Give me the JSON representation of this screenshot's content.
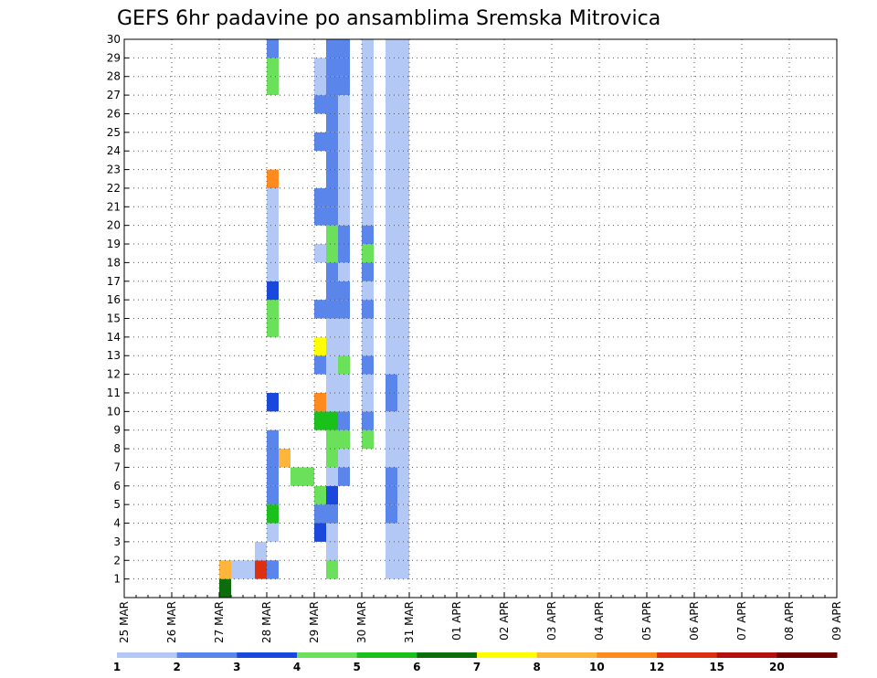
{
  "chart_data": {
    "type": "heatmap",
    "title": "GEFS 6hr padavine po ansamblima Sremska Mitrovica",
    "x_axis": {
      "ticks": [
        "25 MAR",
        "26 MAR",
        "27 MAR",
        "28 MAR",
        "29 MAR",
        "30 MAR",
        "31 MAR",
        "01 APR",
        "02 APR",
        "03 APR",
        "04 APR",
        "05 APR",
        "06 APR",
        "07 APR",
        "08 APR",
        "09 APR"
      ],
      "step": "6 hr"
    },
    "y_axis": {
      "ticks": [
        "1",
        "2",
        "3",
        "4",
        "5",
        "6",
        "7",
        "8",
        "9",
        "10",
        "11",
        "12",
        "13",
        "14",
        "15",
        "16",
        "17",
        "18",
        "19",
        "20",
        "21",
        "22",
        "23",
        "24",
        "25",
        "26",
        "27",
        "28",
        "29",
        "30"
      ],
      "range": [
        0,
        30
      ]
    },
    "grid": true,
    "legend": {
      "placement": "bottom",
      "labels": [
        "1",
        "2",
        "3",
        "4",
        "5",
        "6",
        "7",
        "8",
        "10",
        "12",
        "15",
        "20"
      ],
      "colors": [
        "#b3c8f5",
        "#5a86ec",
        "#1a48dc",
        "#6be05a",
        "#1ac11a",
        "#0b6e0b",
        "#ffff00",
        "#ffb43c",
        "#ff8a1e",
        "#dd3010",
        "#b41010",
        "#6e0000"
      ]
    },
    "cells": [
      [
        8,
        0,
        5
      ],
      [
        8,
        1,
        7
      ],
      [
        12,
        1,
        1
      ],
      [
        17,
        2,
        1
      ],
      [
        17,
        3,
        2
      ],
      [
        14,
        6,
        3
      ],
      [
        15,
        6,
        3
      ],
      [
        12,
        7,
        7
      ],
      [
        13,
        7,
        7
      ],
      [
        9,
        1,
        0
      ],
      [
        10,
        1,
        0
      ],
      [
        11,
        1,
        9
      ],
      [
        11,
        2,
        0
      ],
      [
        12,
        3,
        0
      ],
      [
        12,
        4,
        4
      ],
      [
        12,
        5,
        1
      ],
      [
        12,
        6,
        1
      ],
      [
        12,
        7,
        1
      ],
      [
        12,
        8,
        1
      ],
      [
        12,
        10,
        2
      ],
      [
        12,
        14,
        3
      ],
      [
        12,
        15,
        3
      ],
      [
        12,
        16,
        2
      ],
      [
        12,
        17,
        0
      ],
      [
        12,
        18,
        0
      ],
      [
        12,
        19,
        0
      ],
      [
        12,
        20,
        0
      ],
      [
        12,
        21,
        0
      ],
      [
        12,
        22,
        8
      ],
      [
        12,
        27,
        3
      ],
      [
        12,
        28,
        3
      ],
      [
        12,
        29,
        1
      ],
      [
        16,
        3,
        2
      ],
      [
        16,
        4,
        1
      ],
      [
        16,
        5,
        3
      ],
      [
        16,
        9,
        4
      ],
      [
        16,
        10,
        8
      ],
      [
        16,
        12,
        1
      ],
      [
        16,
        13,
        6
      ],
      [
        16,
        15,
        1
      ],
      [
        16,
        18,
        0
      ],
      [
        16,
        20,
        1
      ],
      [
        16,
        21,
        1
      ],
      [
        16,
        24,
        1
      ],
      [
        16,
        26,
        1
      ],
      [
        16,
        27,
        0
      ],
      [
        16,
        28,
        0
      ],
      [
        17,
        1,
        3
      ],
      [
        17,
        2,
        0
      ],
      [
        17,
        3,
        0
      ],
      [
        17,
        4,
        1
      ],
      [
        17,
        5,
        2
      ],
      [
        17,
        6,
        0
      ],
      [
        17,
        7,
        3
      ],
      [
        17,
        8,
        3
      ],
      [
        17,
        9,
        4
      ],
      [
        17,
        10,
        0
      ],
      [
        17,
        11,
        0
      ],
      [
        17,
        12,
        0
      ],
      [
        17,
        13,
        0
      ],
      [
        17,
        14,
        0
      ],
      [
        17,
        15,
        1
      ],
      [
        17,
        16,
        1
      ],
      [
        17,
        17,
        1
      ],
      [
        17,
        18,
        3
      ],
      [
        17,
        19,
        3
      ],
      [
        17,
        20,
        1
      ],
      [
        17,
        21,
        1
      ],
      [
        17,
        22,
        1
      ],
      [
        17,
        23,
        1
      ],
      [
        17,
        24,
        1
      ],
      [
        17,
        25,
        1
      ],
      [
        17,
        26,
        1
      ],
      [
        17,
        27,
        1
      ],
      [
        17,
        28,
        1
      ],
      [
        17,
        29,
        1
      ],
      [
        18,
        6,
        1
      ],
      [
        18,
        7,
        0
      ],
      [
        18,
        8,
        3
      ],
      [
        18,
        9,
        1
      ],
      [
        18,
        10,
        0
      ],
      [
        18,
        11,
        0
      ],
      [
        18,
        12,
        3
      ],
      [
        18,
        13,
        0
      ],
      [
        18,
        14,
        0
      ],
      [
        18,
        15,
        1
      ],
      [
        18,
        16,
        1
      ],
      [
        18,
        17,
        0
      ],
      [
        18,
        18,
        1
      ],
      [
        18,
        19,
        1
      ],
      [
        18,
        20,
        0
      ],
      [
        18,
        21,
        0
      ],
      [
        18,
        22,
        0
      ],
      [
        18,
        23,
        0
      ],
      [
        18,
        24,
        0
      ],
      [
        18,
        25,
        0
      ],
      [
        18,
        26,
        0
      ],
      [
        18,
        27,
        1
      ],
      [
        18,
        28,
        1
      ],
      [
        18,
        29,
        1
      ],
      [
        20,
        8,
        3
      ],
      [
        20,
        9,
        1
      ],
      [
        20,
        10,
        0
      ],
      [
        20,
        11,
        0
      ],
      [
        20,
        12,
        1
      ],
      [
        20,
        13,
        0
      ],
      [
        20,
        14,
        0
      ],
      [
        20,
        15,
        1
      ],
      [
        20,
        16,
        0
      ],
      [
        20,
        17,
        1
      ],
      [
        20,
        18,
        3
      ],
      [
        20,
        19,
        1
      ],
      [
        20,
        20,
        0
      ],
      [
        20,
        21,
        0
      ],
      [
        20,
        22,
        0
      ],
      [
        20,
        23,
        0
      ],
      [
        20,
        24,
        0
      ],
      [
        20,
        25,
        0
      ],
      [
        20,
        26,
        0
      ],
      [
        20,
        27,
        0
      ],
      [
        20,
        28,
        0
      ],
      [
        20,
        29,
        0
      ],
      [
        22,
        1,
        0
      ],
      [
        22,
        2,
        0
      ],
      [
        22,
        3,
        0
      ],
      [
        22,
        4,
        1
      ],
      [
        22,
        5,
        1
      ],
      [
        22,
        6,
        1
      ],
      [
        22,
        7,
        0
      ],
      [
        22,
        8,
        0
      ],
      [
        22,
        9,
        0
      ],
      [
        22,
        10,
        1
      ],
      [
        22,
        11,
        1
      ],
      [
        22,
        12,
        0
      ],
      [
        22,
        13,
        0
      ],
      [
        22,
        14,
        0
      ],
      [
        22,
        15,
        0
      ],
      [
        22,
        16,
        0
      ],
      [
        22,
        17,
        0
      ],
      [
        22,
        18,
        0
      ],
      [
        22,
        19,
        0
      ],
      [
        22,
        20,
        0
      ],
      [
        22,
        21,
        0
      ],
      [
        22,
        22,
        0
      ],
      [
        22,
        23,
        0
      ],
      [
        22,
        24,
        0
      ],
      [
        22,
        25,
        0
      ],
      [
        22,
        26,
        0
      ],
      [
        22,
        27,
        0
      ],
      [
        22,
        28,
        0
      ],
      [
        22,
        29,
        0
      ],
      [
        23,
        1,
        0
      ],
      [
        23,
        2,
        0
      ],
      [
        23,
        3,
        0
      ],
      [
        23,
        4,
        0
      ],
      [
        23,
        5,
        0
      ],
      [
        23,
        6,
        0
      ],
      [
        23,
        7,
        0
      ],
      [
        23,
        8,
        0
      ],
      [
        23,
        9,
        0
      ],
      [
        23,
        10,
        0
      ],
      [
        23,
        11,
        0
      ],
      [
        23,
        12,
        0
      ],
      [
        23,
        13,
        0
      ],
      [
        23,
        14,
        0
      ],
      [
        23,
        15,
        0
      ],
      [
        23,
        16,
        0
      ],
      [
        23,
        17,
        0
      ],
      [
        23,
        18,
        0
      ],
      [
        23,
        19,
        0
      ],
      [
        23,
        20,
        0
      ],
      [
        23,
        21,
        0
      ],
      [
        23,
        22,
        0
      ],
      [
        23,
        23,
        0
      ],
      [
        23,
        24,
        0
      ],
      [
        23,
        25,
        0
      ],
      [
        23,
        26,
        0
      ],
      [
        23,
        27,
        0
      ],
      [
        23,
        28,
        0
      ],
      [
        23,
        29,
        0
      ]
    ]
  }
}
